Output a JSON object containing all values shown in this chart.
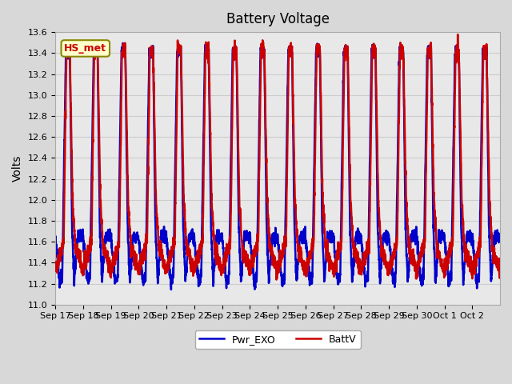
{
  "title": "Battery Voltage",
  "ylabel": "Volts",
  "ylim": [
    11.0,
    13.6
  ],
  "yticks": [
    11.0,
    11.2,
    11.4,
    11.6,
    11.8,
    12.0,
    12.2,
    12.4,
    12.6,
    12.8,
    13.0,
    13.2,
    13.4,
    13.6
  ],
  "x_labels": [
    "Sep 17",
    "Sep 18",
    "Sep 19",
    "Sep 20",
    "Sep 21",
    "Sep 22",
    "Sep 23",
    "Sep 24",
    "Sep 25",
    "Sep 26",
    "Sep 27",
    "Sep 28",
    "Sep 29",
    "Sep 30",
    "Oct 1",
    "Oct 2"
  ],
  "annotation_text": "HS_met",
  "annotation_bg": "#ffffcc",
  "annotation_border": "#888800",
  "annotation_text_color": "#cc0000",
  "line1_color": "#cc0000",
  "line2_color": "#0000cc",
  "line1_label": "BattV",
  "line2_label": "Pwr_EXO",
  "grid_color": "#cccccc",
  "fig_bg_color": "#d8d8d8",
  "ax_bg_color": "#e8e8e8",
  "n_days": 16,
  "n_points_per_day": 200,
  "max_voltage": 13.42,
  "min_voltage_red": 11.32,
  "min_voltage_blue": 11.22,
  "line_width": 1.8,
  "title_fontsize": 12,
  "label_fontsize": 10,
  "tick_fontsize": 8,
  "legend_fontsize": 9
}
